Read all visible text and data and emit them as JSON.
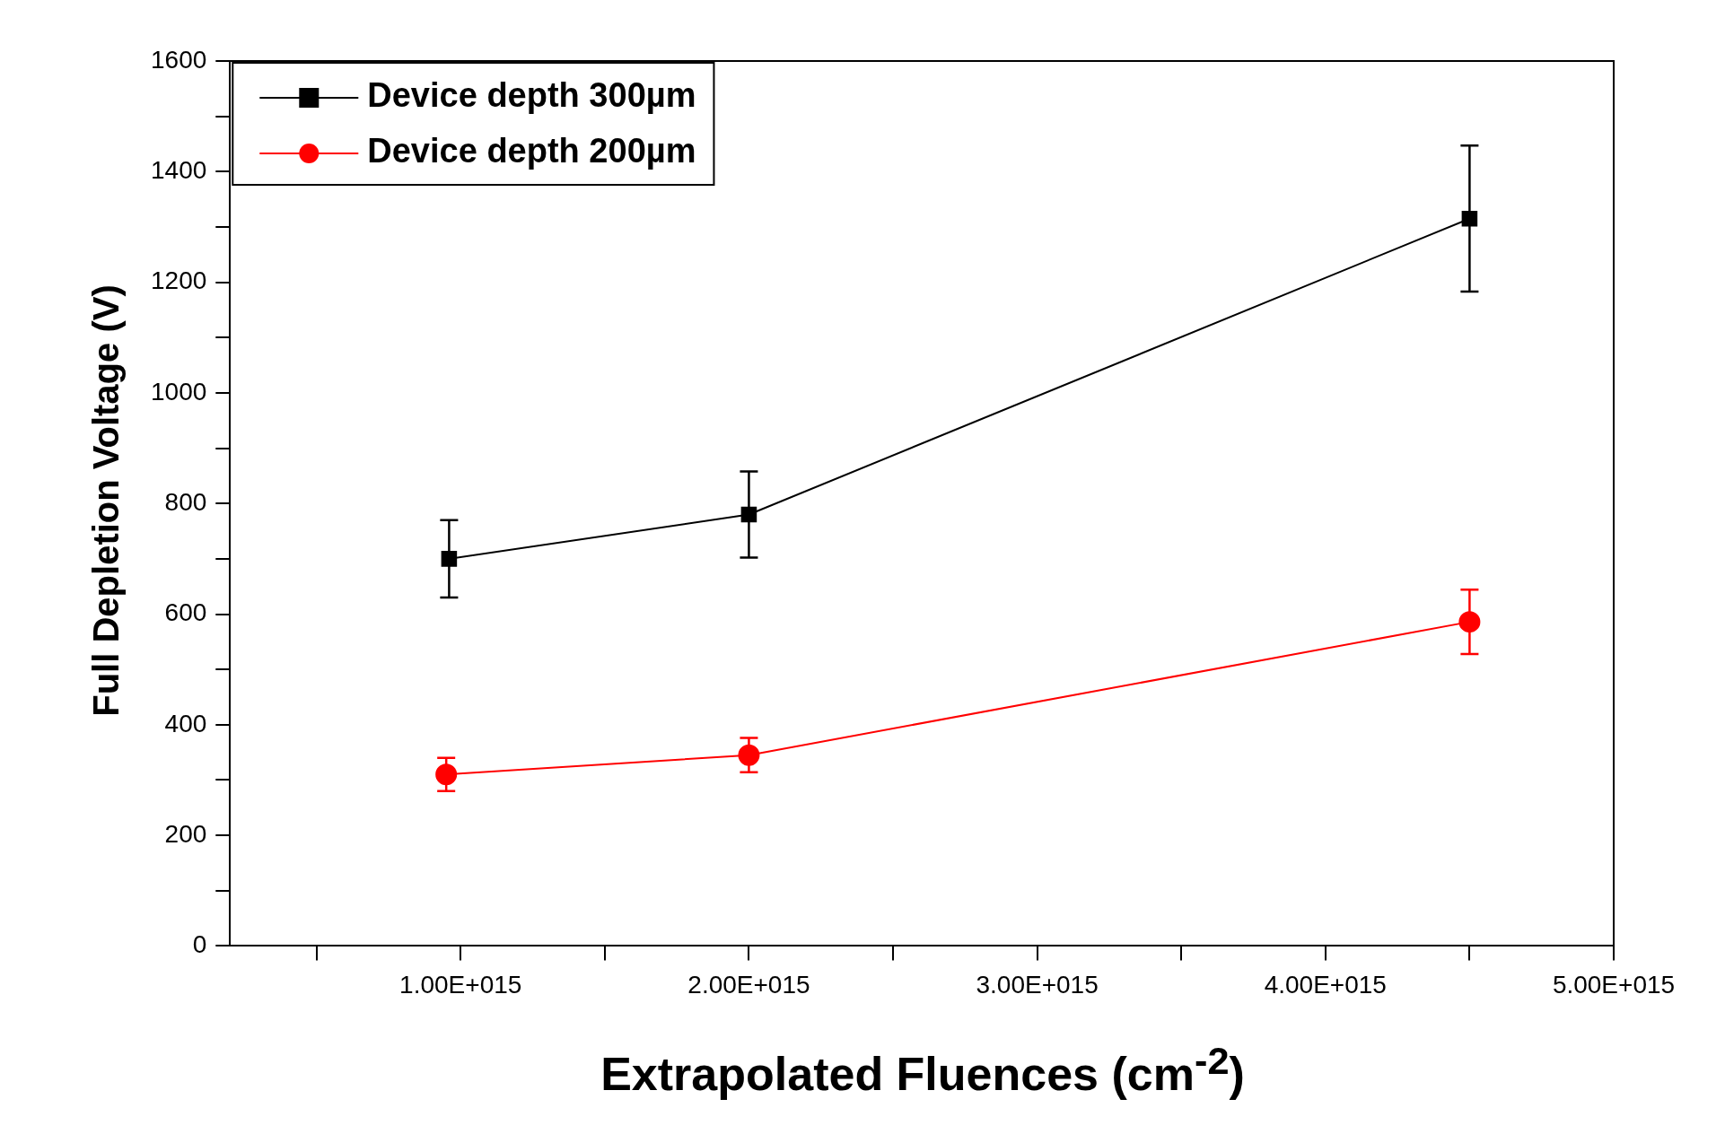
{
  "chart_data": {
    "type": "line",
    "xlabel": "Extrapolated Fluences (cm$^{-2}$)",
    "ylabel": "Full Depletion Voltage (V)",
    "xlim": [
      200000000000000.0,
      5000000000000000.0
    ],
    "xticks": [
      {
        "value": 500000000000000.0,
        "label": null
      },
      {
        "value": 1000000000000000.0,
        "label": "1.00E+015"
      },
      {
        "value": 1500000000000000.0,
        "label": null
      },
      {
        "value": 2000000000000000.0,
        "label": "2.00E+015"
      },
      {
        "value": 2500000000000000.0,
        "label": null
      },
      {
        "value": 3000000000000000.0,
        "label": "3.00E+015"
      },
      {
        "value": 3500000000000000.0,
        "label": null
      },
      {
        "value": 4000000000000000.0,
        "label": "4.00E+015"
      },
      {
        "value": 4500000000000000.0,
        "label": null
      },
      {
        "value": 5000000000000000.0,
        "label": "5.00E+015"
      }
    ],
    "ylim": [
      0,
      1600
    ],
    "yticks": [
      0,
      {
        "value": 100,
        "label": null
      },
      200,
      {
        "value": 300,
        "label": null
      },
      400,
      {
        "value": 500,
        "label": null
      },
      600,
      {
        "value": 700,
        "label": null
      },
      800,
      {
        "value": 900,
        "label": null
      },
      1000,
      {
        "value": 1100,
        "label": null
      },
      1200,
      {
        "value": 1300,
        "label": null
      },
      1400,
      {
        "value": 1500,
        "label": null
      },
      1600
    ],
    "legend": "top left",
    "series": [
      {
        "name": "Device depth 300µm",
        "color": "#000000",
        "marker": "square",
        "x": [
          960000000000000.0,
          2000000000000000.0,
          4500000000000000.0
        ],
        "values": [
          700,
          780,
          1315
        ],
        "errors": [
          70,
          78,
          132
        ]
      },
      {
        "name": "Device depth 200µm",
        "color": "#ff0000",
        "marker": "circle",
        "x": [
          950000000000000.0,
          2000000000000000.0,
          4500000000000000.0
        ],
        "values": [
          310,
          345,
          586
        ],
        "errors": [
          30,
          31,
          58
        ]
      }
    ]
  }
}
